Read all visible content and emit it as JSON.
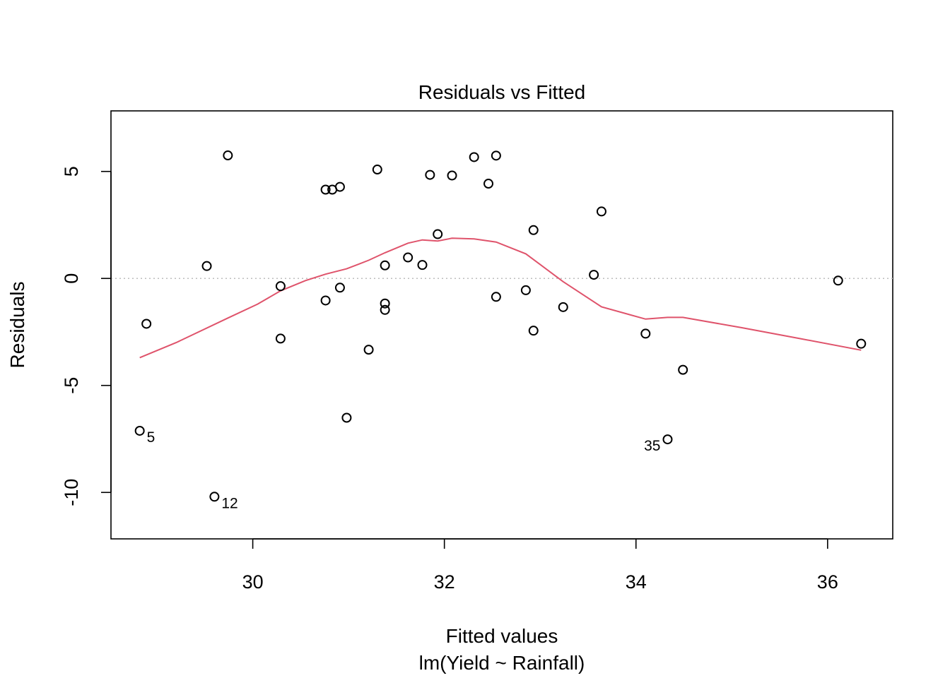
{
  "chart_data": {
    "type": "scatter",
    "title": "Residuals vs Fitted",
    "xlabel": "Fitted values",
    "subtitle": "lm(Yield ~ Rainfall)",
    "ylabel": "Residuals",
    "xlim": [
      28.52,
      36.68
    ],
    "ylim": [
      -12.17,
      7.83
    ],
    "x_ticks": [
      30,
      32,
      34,
      36
    ],
    "x_tick_labels": [
      "30",
      "32",
      "34",
      "36"
    ],
    "y_ticks": [
      -10,
      -5,
      0,
      5
    ],
    "y_tick_labels": [
      "-10",
      "-5",
      "0",
      "5"
    ],
    "grid": false,
    "reference_line_y": 0,
    "colors": {
      "points": "#000000",
      "smooth": "#DF536B",
      "reference": "#BEBEBE",
      "axes": "#000000"
    },
    "points": [
      {
        "x": 28.82,
        "y": -7.12
      },
      {
        "x": 28.89,
        "y": -2.12
      },
      {
        "x": 29.52,
        "y": 0.58
      },
      {
        "x": 29.6,
        "y": -10.2
      },
      {
        "x": 29.74,
        "y": 5.75
      },
      {
        "x": 30.29,
        "y": -0.36
      },
      {
        "x": 30.29,
        "y": -2.81
      },
      {
        "x": 30.76,
        "y": 4.15
      },
      {
        "x": 30.76,
        "y": -1.03
      },
      {
        "x": 30.83,
        "y": 4.15
      },
      {
        "x": 30.91,
        "y": 4.28
      },
      {
        "x": 30.91,
        "y": -0.43
      },
      {
        "x": 30.98,
        "y": -6.51
      },
      {
        "x": 31.21,
        "y": -3.33
      },
      {
        "x": 31.3,
        "y": 5.09
      },
      {
        "x": 31.38,
        "y": 0.61
      },
      {
        "x": 31.38,
        "y": -1.17
      },
      {
        "x": 31.38,
        "y": -1.47
      },
      {
        "x": 31.62,
        "y": 0.98
      },
      {
        "x": 31.77,
        "y": 0.63
      },
      {
        "x": 31.85,
        "y": 4.84
      },
      {
        "x": 31.93,
        "y": 2.07
      },
      {
        "x": 32.08,
        "y": 4.81
      },
      {
        "x": 32.31,
        "y": 5.67
      },
      {
        "x": 32.46,
        "y": 4.43
      },
      {
        "x": 32.54,
        "y": 5.74
      },
      {
        "x": 32.54,
        "y": -0.86
      },
      {
        "x": 32.85,
        "y": -0.55
      },
      {
        "x": 32.93,
        "y": 2.26
      },
      {
        "x": 32.93,
        "y": -2.44
      },
      {
        "x": 33.24,
        "y": -1.34
      },
      {
        "x": 33.56,
        "y": 0.17
      },
      {
        "x": 33.64,
        "y": 3.13
      },
      {
        "x": 34.1,
        "y": -2.58
      },
      {
        "x": 34.33,
        "y": -7.52
      },
      {
        "x": 34.49,
        "y": -4.27
      },
      {
        "x": 36.11,
        "y": -0.1
      },
      {
        "x": 36.35,
        "y": -3.05
      }
    ],
    "smooth": {
      "x": [
        28.82,
        29.2,
        29.74,
        30.05,
        30.29,
        30.55,
        30.76,
        30.98,
        31.21,
        31.38,
        31.62,
        31.77,
        31.93,
        32.08,
        32.31,
        32.54,
        32.85,
        33.24,
        33.64,
        34.1,
        34.33,
        34.49,
        35.1,
        35.7,
        36.35
      ],
      "y": [
        -3.7,
        -3.0,
        -1.85,
        -1.2,
        -0.58,
        -0.1,
        0.2,
        0.45,
        0.85,
        1.2,
        1.65,
        1.8,
        1.75,
        1.88,
        1.85,
        1.7,
        1.15,
        -0.15,
        -1.33,
        -1.9,
        -1.82,
        -1.82,
        -2.3,
        -2.8,
        -3.35
      ]
    },
    "point_labels": [
      {
        "text": "5",
        "x": 28.82,
        "y": -7.12,
        "position": "right"
      },
      {
        "text": "12",
        "x": 29.6,
        "y": -10.2,
        "position": "right"
      },
      {
        "text": "35",
        "x": 34.33,
        "y": -7.52,
        "position": "left"
      }
    ]
  }
}
